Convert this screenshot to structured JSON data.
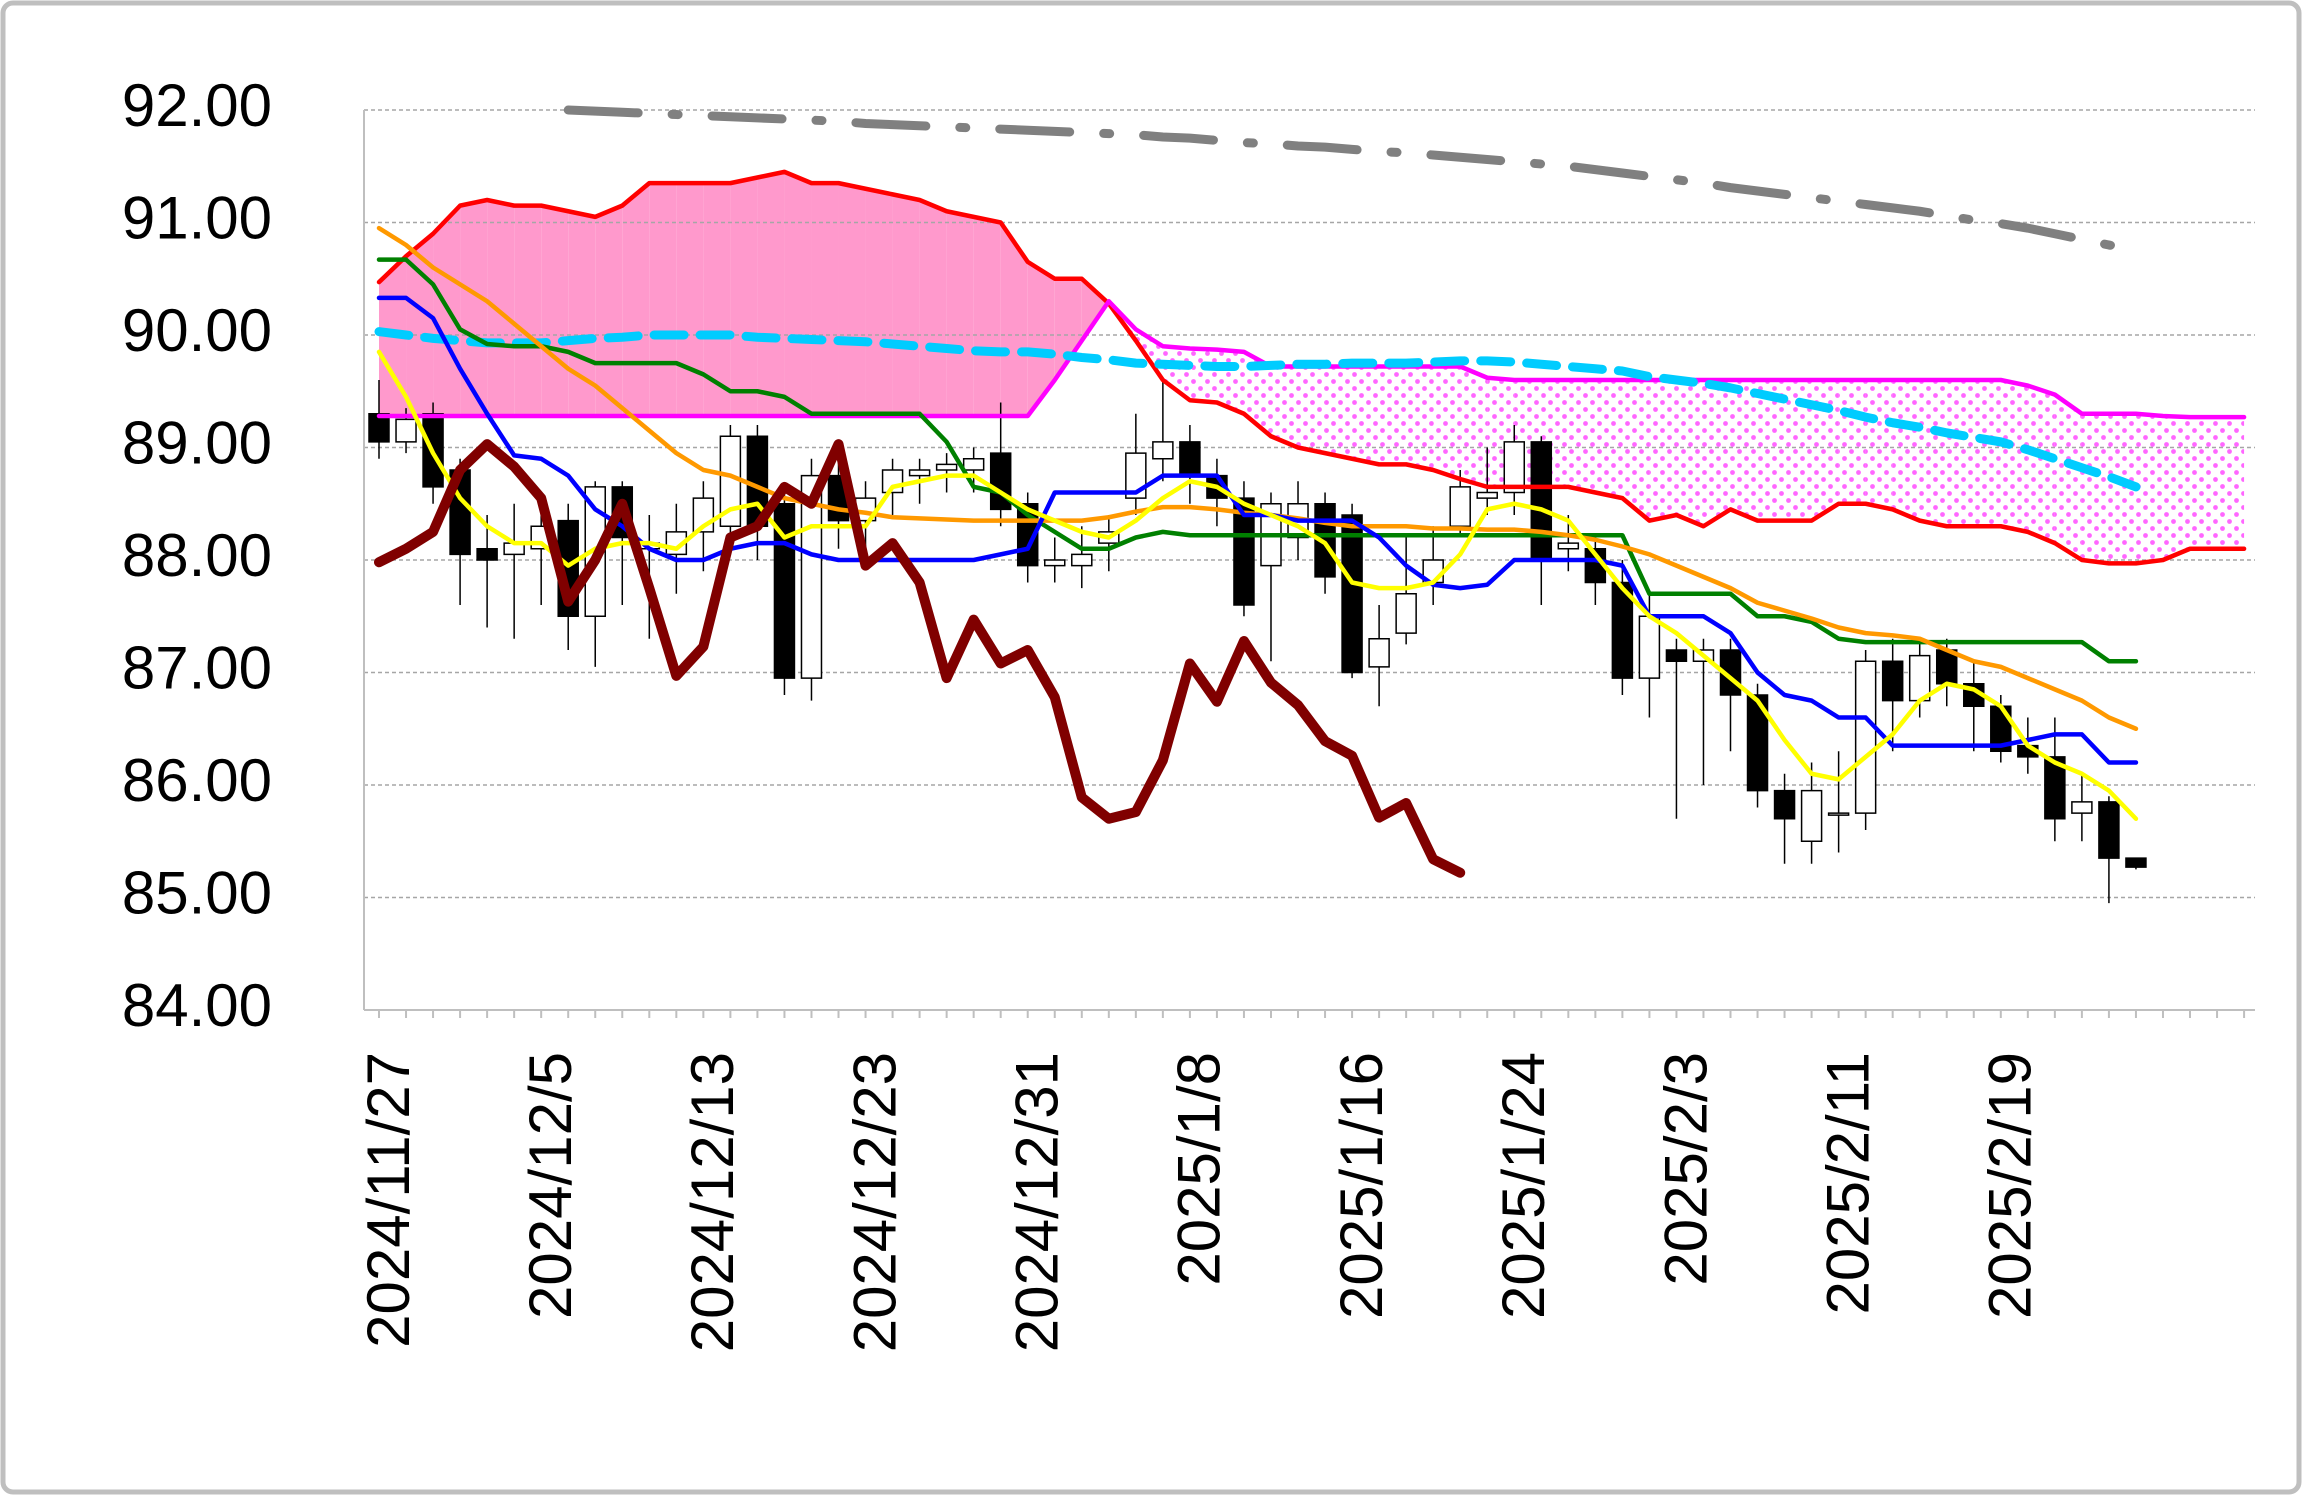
{
  "chart_data": {
    "type": "candlestick",
    "categories": [
      "2024/11/27",
      null,
      null,
      null,
      null,
      null,
      "2024/12/5",
      null,
      null,
      null,
      null,
      null,
      "2024/12/13",
      null,
      null,
      null,
      null,
      null,
      "2024/12/23",
      null,
      null,
      null,
      null,
      null,
      "2024/12/31",
      null,
      null,
      null,
      null,
      null,
      "2025/1/8",
      null,
      null,
      null,
      null,
      null,
      "2025/1/16",
      null,
      null,
      null,
      null,
      null,
      "2025/1/24",
      null,
      null,
      null,
      null,
      null,
      "2025/2/3",
      null,
      null,
      null,
      null,
      null,
      "2025/2/11",
      null,
      null,
      null,
      null,
      null,
      "2025/2/19",
      null,
      null,
      null,
      null,
      null,
      null,
      null,
      null,
      null
    ],
    "ohlc": {
      "open": [
        89.3,
        89.05,
        89.3,
        88.8,
        88.1,
        88.05,
        88.1,
        88.35,
        87.5,
        88.65,
        88.1,
        88.05,
        88.25,
        88.3,
        89.1,
        88.5,
        86.95,
        88.75,
        88.35,
        88.6,
        88.75,
        88.8,
        88.8,
        88.95,
        88.5,
        87.95,
        87.95,
        88.15,
        88.55,
        88.9,
        89.05,
        88.75,
        88.55,
        87.95,
        88.2,
        88.5,
        88.4,
        87.05,
        87.35,
        87.8,
        88.3,
        88.55,
        88.6,
        89.05,
        88.1,
        88.1,
        87.8,
        86.95,
        87.2,
        87.1,
        87.2,
        86.8,
        85.95,
        85.5,
        85.75,
        85.75,
        87.1,
        86.75,
        87.2,
        86.9,
        86.7,
        86.35,
        86.25,
        85.75,
        85.85,
        85.35
      ],
      "high": [
        89.6,
        89.35,
        89.4,
        88.9,
        88.4,
        88.5,
        88.6,
        88.5,
        88.7,
        88.7,
        88.4,
        88.5,
        88.7,
        89.2,
        89.2,
        88.6,
        88.9,
        89.0,
        88.7,
        88.9,
        88.9,
        88.95,
        89.0,
        89.4,
        88.6,
        88.2,
        88.3,
        88.4,
        89.3,
        89.6,
        89.2,
        88.9,
        88.7,
        88.6,
        88.7,
        88.6,
        88.5,
        87.6,
        88.2,
        88.3,
        88.8,
        89.0,
        89.2,
        89.1,
        88.4,
        88.2,
        88.0,
        87.7,
        87.3,
        87.3,
        87.3,
        86.9,
        86.1,
        86.2,
        86.3,
        87.2,
        87.3,
        87.3,
        87.3,
        87.1,
        86.8,
        86.6,
        86.6,
        86.1,
        85.9,
        85.35
      ],
      "low": [
        88.9,
        88.95,
        88.5,
        87.6,
        87.4,
        87.3,
        87.6,
        87.2,
        87.05,
        87.6,
        87.3,
        87.7,
        87.9,
        88.1,
        88.0,
        86.8,
        86.75,
        88.1,
        88.1,
        88.4,
        88.5,
        88.6,
        88.6,
        88.3,
        87.8,
        87.8,
        87.75,
        87.9,
        88.4,
        88.7,
        88.5,
        88.3,
        87.5,
        87.1,
        88.0,
        87.7,
        86.95,
        86.7,
        87.25,
        87.6,
        88.2,
        88.4,
        88.4,
        87.6,
        87.9,
        87.6,
        86.8,
        86.6,
        85.7,
        86.0,
        86.3,
        85.8,
        85.3,
        85.3,
        85.4,
        85.6,
        86.3,
        86.6,
        86.7,
        86.3,
        86.2,
        86.1,
        85.5,
        85.5,
        84.95,
        85.25
      ],
      "close": [
        89.05,
        89.25,
        88.65,
        88.05,
        88.0,
        88.15,
        88.3,
        87.5,
        88.65,
        88.2,
        88.15,
        88.25,
        88.55,
        89.1,
        88.3,
        86.95,
        88.75,
        88.35,
        88.55,
        88.8,
        88.8,
        88.85,
        88.9,
        88.45,
        87.95,
        88.0,
        88.05,
        88.25,
        88.95,
        89.05,
        88.75,
        88.55,
        87.6,
        88.5,
        88.5,
        87.85,
        87.0,
        87.3,
        87.7,
        88.0,
        88.65,
        88.6,
        89.05,
        88.0,
        88.15,
        87.8,
        86.95,
        87.5,
        87.1,
        87.2,
        86.8,
        85.95,
        85.7,
        85.95,
        85.75,
        87.1,
        86.75,
        87.15,
        86.9,
        86.7,
        86.3,
        86.25,
        85.7,
        85.85,
        85.35,
        85.27
      ]
    },
    "up_color": "#ffffff",
    "down_color": "#000000",
    "cloud_colors": [
      "#ff99cc",
      "#ff66ff"
    ],
    "series": [
      {
        "color": "#ff0000",
        "style": "solid",
        "values": [
          90.47,
          90.7,
          90.9,
          91.15,
          91.2,
          91.15,
          91.15,
          91.1,
          91.05,
          91.15,
          91.35,
          91.35,
          91.35,
          91.35,
          91.4,
          91.45,
          91.35,
          91.35,
          91.3,
          91.25,
          91.2,
          91.1,
          91.05,
          91.0,
          90.65,
          90.5,
          90.5,
          90.28,
          89.95,
          89.6,
          89.42,
          89.4,
          89.3,
          89.1,
          89.0,
          88.95,
          88.9,
          88.85,
          88.85,
          88.8,
          88.72,
          88.65,
          88.65,
          88.65,
          88.65,
          88.6,
          88.55,
          88.35,
          88.4,
          88.3,
          88.45,
          88.35,
          88.35,
          88.35,
          88.5,
          88.5,
          88.45,
          88.35,
          88.3,
          88.3,
          88.3,
          88.25,
          88.15,
          88.0,
          87.97,
          87.97,
          88.0,
          88.1,
          88.1,
          88.1
        ]
      },
      {
        "color": "#ff00ff",
        "style": "solid",
        "values": [
          89.28,
          89.28,
          89.28,
          89.28,
          89.28,
          89.28,
          89.28,
          89.28,
          89.28,
          89.28,
          89.28,
          89.28,
          89.28,
          89.28,
          89.28,
          89.28,
          89.28,
          89.28,
          89.28,
          89.28,
          89.28,
          89.28,
          89.28,
          89.28,
          89.28,
          89.6,
          89.95,
          90.3,
          90.05,
          89.9,
          89.88,
          89.87,
          89.85,
          89.72,
          89.72,
          89.72,
          89.72,
          89.72,
          89.72,
          89.72,
          89.72,
          89.62,
          89.6,
          89.6,
          89.6,
          89.6,
          89.6,
          89.6,
          89.6,
          89.6,
          89.6,
          89.6,
          89.6,
          89.6,
          89.6,
          89.6,
          89.6,
          89.6,
          89.6,
          89.6,
          89.6,
          89.55,
          89.47,
          89.3,
          89.3,
          89.3,
          89.28,
          89.27,
          89.27,
          89.27
        ]
      },
      {
        "color": "#808080",
        "style": "dashdot",
        "values": [
          null,
          null,
          null,
          null,
          null,
          null,
          null,
          92.0,
          91.99,
          91.98,
          91.97,
          91.96,
          91.95,
          91.94,
          91.93,
          91.92,
          91.91,
          91.9,
          91.88,
          91.87,
          91.86,
          91.85,
          91.84,
          91.83,
          91.82,
          91.81,
          91.8,
          91.79,
          91.78,
          91.76,
          91.75,
          91.73,
          91.71,
          91.7,
          91.68,
          91.67,
          91.65,
          91.63,
          91.62,
          91.6,
          91.58,
          91.56,
          91.54,
          91.52,
          91.5,
          91.47,
          91.44,
          91.41,
          91.38,
          91.35,
          91.31,
          91.28,
          91.25,
          91.22,
          91.19,
          91.16,
          91.13,
          91.1,
          91.06,
          91.02,
          90.99,
          90.95,
          90.9,
          90.85,
          90.8,
          90.76,
          null,
          null,
          null,
          null
        ]
      },
      {
        "color": "#00ccff",
        "style": "dashed",
        "values": [
          90.03,
          90.0,
          89.97,
          89.95,
          89.93,
          89.93,
          89.93,
          89.95,
          89.97,
          89.98,
          90.0,
          90.0,
          90.0,
          90.0,
          89.98,
          89.97,
          89.96,
          89.95,
          89.94,
          89.92,
          89.9,
          89.88,
          89.86,
          89.85,
          89.85,
          89.83,
          89.8,
          89.78,
          89.75,
          89.74,
          89.73,
          89.72,
          89.72,
          89.73,
          89.74,
          89.74,
          89.75,
          89.75,
          89.75,
          89.76,
          89.77,
          89.77,
          89.76,
          89.74,
          89.72,
          89.7,
          89.68,
          89.63,
          89.6,
          89.57,
          89.53,
          89.48,
          89.43,
          89.38,
          89.33,
          89.27,
          89.22,
          89.18,
          89.13,
          89.09,
          89.05,
          88.98,
          88.9,
          88.82,
          88.74,
          88.65,
          null,
          null,
          null,
          null
        ]
      },
      {
        "color": "#008000",
        "style": "solid",
        "values": [
          90.67,
          90.67,
          90.45,
          90.05,
          89.92,
          89.9,
          89.9,
          89.85,
          89.75,
          89.75,
          89.75,
          89.75,
          89.65,
          89.5,
          89.5,
          89.45,
          89.3,
          89.3,
          89.3,
          89.3,
          89.3,
          89.05,
          88.65,
          88.6,
          88.4,
          88.25,
          88.1,
          88.1,
          88.2,
          88.25,
          88.22,
          88.22,
          88.22,
          88.22,
          88.22,
          88.22,
          88.22,
          88.22,
          88.22,
          88.22,
          88.22,
          88.22,
          88.22,
          88.22,
          88.22,
          88.22,
          88.22,
          87.7,
          87.7,
          87.7,
          87.7,
          87.5,
          87.5,
          87.45,
          87.3,
          87.27,
          87.27,
          87.27,
          87.27,
          87.27,
          87.27,
          87.27,
          87.27,
          87.27,
          87.1,
          87.1,
          null,
          null,
          null,
          null
        ]
      },
      {
        "color": "#ff9900",
        "style": "solid",
        "values": [
          90.95,
          90.8,
          90.6,
          90.45,
          90.3,
          90.1,
          89.9,
          89.7,
          89.55,
          89.35,
          89.15,
          88.95,
          88.8,
          88.75,
          88.65,
          88.55,
          88.5,
          88.45,
          88.42,
          88.38,
          88.37,
          88.36,
          88.35,
          88.35,
          88.35,
          88.35,
          88.35,
          88.38,
          88.43,
          88.47,
          88.47,
          88.45,
          88.42,
          88.4,
          88.37,
          88.33,
          88.3,
          88.3,
          88.3,
          88.28,
          88.28,
          88.27,
          88.27,
          88.25,
          88.22,
          88.18,
          88.12,
          88.05,
          87.95,
          87.85,
          87.75,
          87.62,
          87.55,
          87.48,
          87.4,
          87.35,
          87.33,
          87.3,
          87.2,
          87.1,
          87.05,
          86.95,
          86.85,
          86.75,
          86.6,
          86.5,
          null,
          null,
          null,
          null
        ]
      },
      {
        "color": "#0000ff",
        "style": "solid",
        "values": [
          90.33,
          90.33,
          90.15,
          89.7,
          89.3,
          88.93,
          88.9,
          88.75,
          88.45,
          88.3,
          88.1,
          88.0,
          88.0,
          88.1,
          88.15,
          88.15,
          88.05,
          88.0,
          88.0,
          88.0,
          88.0,
          88.0,
          88.0,
          88.05,
          88.1,
          88.6,
          88.6,
          88.6,
          88.6,
          88.75,
          88.75,
          88.75,
          88.4,
          88.4,
          88.35,
          88.35,
          88.35,
          88.2,
          87.95,
          87.78,
          87.75,
          87.78,
          88.0,
          88.0,
          88.0,
          88.0,
          87.95,
          87.5,
          87.5,
          87.5,
          87.35,
          87.0,
          86.8,
          86.75,
          86.6,
          86.6,
          86.35,
          86.35,
          86.35,
          86.35,
          86.35,
          86.4,
          86.45,
          86.45,
          86.2,
          86.2,
          null,
          null,
          null,
          null
        ]
      },
      {
        "color": "#ffff00",
        "style": "solid",
        "values": [
          89.85,
          89.45,
          88.95,
          88.55,
          88.3,
          88.15,
          88.15,
          87.95,
          88.1,
          88.15,
          88.15,
          88.1,
          88.3,
          88.45,
          88.5,
          88.2,
          88.3,
          88.3,
          88.3,
          88.65,
          88.7,
          88.75,
          88.75,
          88.6,
          88.45,
          88.35,
          88.25,
          88.2,
          88.35,
          88.55,
          88.7,
          88.65,
          88.5,
          88.4,
          88.3,
          88.15,
          87.8,
          87.75,
          87.75,
          87.8,
          88.05,
          88.45,
          88.5,
          88.45,
          88.35,
          88.05,
          87.75,
          87.5,
          87.35,
          87.15,
          86.95,
          86.75,
          86.4,
          86.1,
          86.05,
          86.25,
          86.45,
          86.75,
          86.9,
          86.85,
          86.7,
          86.35,
          86.2,
          86.1,
          85.95,
          85.7,
          null,
          null,
          null,
          null
        ]
      },
      {
        "color": "#800000",
        "style": "thick",
        "values": [
          87.98,
          88.1,
          88.25,
          88.8,
          89.03,
          88.83,
          88.55,
          87.63,
          88.0,
          88.5,
          87.75,
          86.97,
          87.23,
          88.2,
          88.3,
          88.65,
          88.5,
          89.03,
          87.95,
          88.15,
          87.8,
          86.95,
          87.47,
          87.08,
          87.2,
          86.78,
          85.89,
          85.7,
          85.76,
          86.22,
          87.08,
          86.74,
          87.28,
          86.91,
          86.71,
          86.39,
          86.26,
          85.71,
          85.84,
          85.34,
          85.22,
          null,
          null,
          null,
          null,
          null,
          null,
          null,
          null,
          null,
          null,
          null,
          null,
          null,
          null,
          null,
          null,
          null,
          null,
          null,
          null,
          null,
          null,
          null,
          null,
          null,
          null,
          null,
          null,
          null
        ]
      }
    ],
    "ylim": [
      84,
      92
    ],
    "yticks": [
      {
        "value": 84,
        "label": "84.00"
      },
      {
        "value": 85,
        "label": "85.00"
      },
      {
        "value": 86,
        "label": "86.00"
      },
      {
        "value": 87,
        "label": "87.00"
      },
      {
        "value": 88,
        "label": "88.00"
      },
      {
        "value": 89,
        "label": "89.00"
      },
      {
        "value": 90,
        "label": "90.00"
      },
      {
        "value": 91,
        "label": "91.00"
      },
      {
        "value": 92,
        "label": "92.00"
      }
    ],
    "grid": true
  }
}
